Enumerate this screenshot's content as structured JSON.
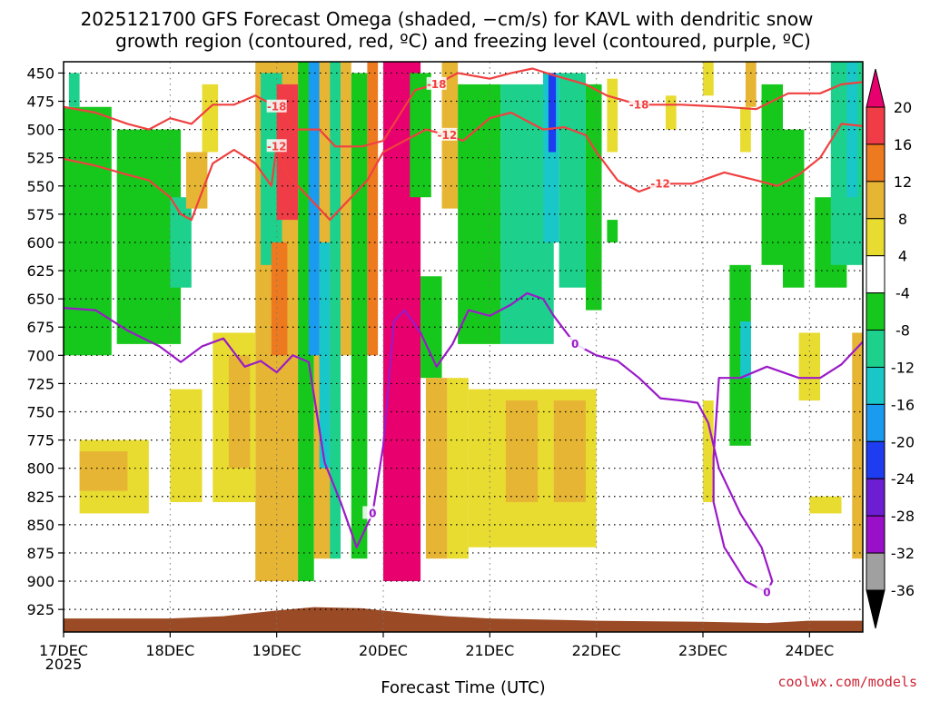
{
  "chart_data": {
    "type": "heatmap",
    "title_lines": [
      "2025121700 GFS Forecast Omega (shaded, −cm/s) for KAVL with dendritic snow",
      "growth region (contoured, red, ºC) and freezing level (contoured, purple, ºC)"
    ],
    "xlabel": "Forecast Time (UTC)",
    "ylabel": "",
    "x_ticks": [
      "17DEC",
      "18DEC",
      "19DEC",
      "20DEC",
      "21DEC",
      "22DEC",
      "23DEC",
      "24DEC"
    ],
    "x_year_label": "2025",
    "x_range_days": [
      0,
      7.5
    ],
    "y_ticks": [
      450,
      475,
      500,
      525,
      550,
      575,
      600,
      625,
      650,
      675,
      700,
      725,
      750,
      775,
      800,
      825,
      850,
      875,
      900,
      925
    ],
    "y_range_hpa": [
      440,
      945
    ],
    "colorbar": {
      "labels": [
        20,
        16,
        12,
        8,
        4,
        -4,
        -8,
        -12,
        -16,
        -20,
        -24,
        -28,
        -32,
        -36
      ],
      "colors": [
        "#e8006f",
        "#f03c46",
        "#ee7a20",
        "#e6b534",
        "#e8dc30",
        "#ffffff",
        "#17c81c",
        "#1dd08c",
        "#19c7c8",
        "#1a9bf0",
        "#1e3cf0",
        "#6e1ed2",
        "#9a0fc8",
        "#a0a0a0",
        "#000000"
      ]
    },
    "omega_patches": [
      {
        "t": [
          0.0,
          0.45
        ],
        "p": [
          480,
          700
        ],
        "v": -8
      },
      {
        "t": [
          0.5,
          1.1
        ],
        "p": [
          500,
          690
        ],
        "v": -8
      },
      {
        "t": [
          1.0,
          1.2
        ],
        "p": [
          560,
          640
        ],
        "v": -12
      },
      {
        "t": [
          1.15,
          1.35
        ],
        "p": [
          520,
          570
        ],
        "v": 8
      },
      {
        "t": [
          0.05,
          0.15
        ],
        "p": [
          450,
          480
        ],
        "v": -12
      },
      {
        "t": [
          1.3,
          1.45
        ],
        "p": [
          460,
          520
        ],
        "v": 4
      },
      {
        "t": [
          1.8,
          2.2
        ],
        "p": [
          440,
          900
        ],
        "v": 8
      },
      {
        "t": [
          1.85,
          2.05
        ],
        "p": [
          450,
          620
        ],
        "v": -12
      },
      {
        "t": [
          1.95,
          2.1
        ],
        "p": [
          600,
          700
        ],
        "v": 12
      },
      {
        "t": [
          2.0,
          2.2
        ],
        "p": [
          460,
          580
        ],
        "v": 16
      },
      {
        "t": [
          2.2,
          2.35
        ],
        "p": [
          440,
          900
        ],
        "v": -8
      },
      {
        "t": [
          2.35,
          2.55
        ],
        "p": [
          440,
          880
        ],
        "v": 8
      },
      {
        "t": [
          2.3,
          2.4
        ],
        "p": [
          440,
          700
        ],
        "v": -20
      },
      {
        "t": [
          2.4,
          2.5
        ],
        "p": [
          600,
          800
        ],
        "v": -16
      },
      {
        "t": [
          2.5,
          2.6
        ],
        "p": [
          440,
          880
        ],
        "v": -12
      },
      {
        "t": [
          2.6,
          2.7
        ],
        "p": [
          440,
          700
        ],
        "v": 8
      },
      {
        "t": [
          2.7,
          2.85
        ],
        "p": [
          450,
          880
        ],
        "v": -8
      },
      {
        "t": [
          2.85,
          2.95
        ],
        "p": [
          440,
          700
        ],
        "v": 12
      },
      {
        "t": [
          3.0,
          3.35
        ],
        "p": [
          440,
          900
        ],
        "v": 20
      },
      {
        "t": [
          1.0,
          1.3
        ],
        "p": [
          730,
          830
        ],
        "v": 4
      },
      {
        "t": [
          0.15,
          0.8
        ],
        "p": [
          775,
          840
        ],
        "v": 4
      },
      {
        "t": [
          0.15,
          0.6
        ],
        "p": [
          785,
          820
        ],
        "v": 8
      },
      {
        "t": [
          1.4,
          1.8
        ],
        "p": [
          680,
          830
        ],
        "v": 4
      },
      {
        "t": [
          1.55,
          1.75
        ],
        "p": [
          700,
          800
        ],
        "v": 8
      },
      {
        "t": [
          3.35,
          3.55
        ],
        "p": [
          630,
          720
        ],
        "v": -8
      },
      {
        "t": [
          3.4,
          3.6
        ],
        "p": [
          720,
          880
        ],
        "v": 8
      },
      {
        "t": [
          3.6,
          3.8
        ],
        "p": [
          720,
          880
        ],
        "v": 4
      },
      {
        "t": [
          3.25,
          3.45
        ],
        "p": [
          450,
          560
        ],
        "v": -8
      },
      {
        "t": [
          3.55,
          3.7
        ],
        "p": [
          440,
          570
        ],
        "v": 8
      },
      {
        "t": [
          3.7,
          4.1
        ],
        "p": [
          460,
          690
        ],
        "v": -8
      },
      {
        "t": [
          4.1,
          4.6
        ],
        "p": [
          460,
          690
        ],
        "v": -12
      },
      {
        "t": [
          4.5,
          4.65
        ],
        "p": [
          450,
          600
        ],
        "v": -16
      },
      {
        "t": [
          4.55,
          4.62
        ],
        "p": [
          450,
          520
        ],
        "v": -24
      },
      {
        "t": [
          4.65,
          4.9
        ],
        "p": [
          450,
          640
        ],
        "v": -12
      },
      {
        "t": [
          4.9,
          5.05
        ],
        "p": [
          460,
          660
        ],
        "v": -8
      },
      {
        "t": [
          3.8,
          5.0
        ],
        "p": [
          730,
          870
        ],
        "v": 4
      },
      {
        "t": [
          4.15,
          4.45
        ],
        "p": [
          740,
          830
        ],
        "v": 8
      },
      {
        "t": [
          4.6,
          4.9
        ],
        "p": [
          740,
          830
        ],
        "v": 8
      },
      {
        "t": [
          5.1,
          5.2
        ],
        "p": [
          580,
          600
        ],
        "v": -8
      },
      {
        "t": [
          5.1,
          5.2
        ],
        "p": [
          455,
          520
        ],
        "v": 4
      },
      {
        "t": [
          5.65,
          5.75
        ],
        "p": [
          470,
          500
        ],
        "v": 4
      },
      {
        "t": [
          6.0,
          6.1
        ],
        "p": [
          440,
          470
        ],
        "v": 4
      },
      {
        "t": [
          6.0,
          6.1
        ],
        "p": [
          740,
          830
        ],
        "v": 4
      },
      {
        "t": [
          6.25,
          6.45
        ],
        "p": [
          620,
          780
        ],
        "v": -8
      },
      {
        "t": [
          6.35,
          6.45
        ],
        "p": [
          670,
          720
        ],
        "v": -16
      },
      {
        "t": [
          6.4,
          6.5
        ],
        "p": [
          440,
          480
        ],
        "v": 8
      },
      {
        "t": [
          6.35,
          6.45
        ],
        "p": [
          480,
          520
        ],
        "v": 4
      },
      {
        "t": [
          6.55,
          6.75
        ],
        "p": [
          460,
          620
        ],
        "v": -8
      },
      {
        "t": [
          6.75,
          6.95
        ],
        "p": [
          500,
          640
        ],
        "v": -8
      },
      {
        "t": [
          6.9,
          7.1
        ],
        "p": [
          680,
          740
        ],
        "v": 4
      },
      {
        "t": [
          7.05,
          7.35
        ],
        "p": [
          560,
          640
        ],
        "v": -8
      },
      {
        "t": [
          7.2,
          7.5
        ],
        "p": [
          440,
          620
        ],
        "v": -12
      },
      {
        "t": [
          7.35,
          7.45
        ],
        "p": [
          440,
          560
        ],
        "v": -16
      },
      {
        "t": [
          7.4,
          7.5
        ],
        "p": [
          680,
          880
        ],
        "v": 8
      },
      {
        "t": [
          7.0,
          7.3
        ],
        "p": [
          825,
          840
        ],
        "v": 4
      }
    ],
    "contours": [
      {
        "level": -18,
        "color": "#f04040",
        "points": [
          [
            0,
            480
          ],
          [
            0.3,
            485
          ],
          [
            0.6,
            495
          ],
          [
            0.8,
            500
          ],
          [
            1.0,
            490
          ],
          [
            1.2,
            495
          ],
          [
            1.4,
            478
          ],
          [
            1.6,
            478
          ],
          [
            1.8,
            470
          ],
          [
            2.0,
            480
          ],
          [
            2.2,
            500
          ],
          [
            2.4,
            500
          ],
          [
            2.55,
            515
          ],
          [
            2.8,
            515
          ],
          [
            3.0,
            510
          ],
          [
            3.2,
            480
          ],
          [
            3.3,
            465
          ],
          [
            3.5,
            460
          ],
          [
            3.7,
            450
          ],
          [
            4.0,
            455
          ],
          [
            4.2,
            450
          ],
          [
            4.4,
            446
          ],
          [
            4.6,
            452
          ],
          [
            4.9,
            460
          ],
          [
            5.1,
            470
          ],
          [
            5.4,
            478
          ],
          [
            5.8,
            478
          ],
          [
            6.2,
            480
          ],
          [
            6.5,
            482
          ],
          [
            6.8,
            468
          ],
          [
            7.1,
            468
          ],
          [
            7.3,
            460
          ],
          [
            7.5,
            458
          ]
        ]
      },
      {
        "level": -12,
        "color": "#f04040",
        "points": [
          [
            0,
            526
          ],
          [
            0.3,
            532
          ],
          [
            0.6,
            540
          ],
          [
            0.8,
            545
          ],
          [
            1.0,
            560
          ],
          [
            1.1,
            575
          ],
          [
            1.2,
            580
          ],
          [
            1.4,
            530
          ],
          [
            1.6,
            518
          ],
          [
            1.8,
            530
          ],
          [
            1.95,
            550
          ],
          [
            2.0,
            515
          ],
          [
            2.1,
            540
          ],
          [
            2.3,
            560
          ],
          [
            2.5,
            580
          ],
          [
            2.7,
            560
          ],
          [
            2.85,
            545
          ],
          [
            3.0,
            520
          ],
          [
            3.2,
            510
          ],
          [
            3.4,
            500
          ],
          [
            3.6,
            505
          ],
          [
            3.75,
            510
          ],
          [
            4.0,
            490
          ],
          [
            4.2,
            485
          ],
          [
            4.5,
            500
          ],
          [
            4.7,
            498
          ],
          [
            4.9,
            505
          ],
          [
            5.0,
            520
          ],
          [
            5.2,
            545
          ],
          [
            5.4,
            555
          ],
          [
            5.6,
            548
          ],
          [
            5.9,
            548
          ],
          [
            6.2,
            538
          ],
          [
            6.5,
            545
          ],
          [
            6.7,
            550
          ],
          [
            6.9,
            540
          ],
          [
            7.1,
            525
          ],
          [
            7.3,
            495
          ],
          [
            7.5,
            497
          ]
        ]
      },
      {
        "level": 0,
        "color": "#9a1ac8",
        "points": [
          [
            0,
            658
          ],
          [
            0.3,
            660
          ],
          [
            0.6,
            678
          ],
          [
            0.9,
            692
          ],
          [
            1.1,
            706
          ],
          [
            1.3,
            692
          ],
          [
            1.5,
            685
          ],
          [
            1.7,
            710
          ],
          [
            1.85,
            705
          ],
          [
            2.0,
            715
          ],
          [
            2.15,
            700
          ],
          [
            2.3,
            706
          ],
          [
            2.45,
            795
          ],
          [
            2.6,
            830
          ],
          [
            2.75,
            870
          ],
          [
            2.9,
            840
          ],
          [
            3.0,
            780
          ],
          [
            3.1,
            670
          ],
          [
            3.2,
            660
          ],
          [
            3.35,
            680
          ],
          [
            3.5,
            710
          ],
          [
            3.65,
            690
          ],
          [
            3.8,
            660
          ],
          [
            4.0,
            665
          ],
          [
            4.2,
            655
          ],
          [
            4.35,
            645
          ],
          [
            4.5,
            650
          ],
          [
            4.6,
            665
          ],
          [
            4.8,
            690
          ],
          [
            5.0,
            700
          ],
          [
            5.2,
            705
          ],
          [
            5.4,
            720
          ],
          [
            5.6,
            738
          ],
          [
            5.8,
            740
          ],
          [
            5.95,
            742
          ],
          [
            6.05,
            760
          ],
          [
            6.15,
            800
          ],
          [
            6.35,
            840
          ],
          [
            6.55,
            870
          ],
          [
            6.65,
            900
          ],
          [
            6.6,
            910
          ],
          [
            6.4,
            900
          ],
          [
            6.2,
            870
          ],
          [
            6.1,
            830
          ],
          [
            6.1,
            790
          ],
          [
            6.15,
            720
          ],
          [
            6.35,
            720
          ],
          [
            6.6,
            710
          ],
          [
            6.9,
            720
          ],
          [
            7.1,
            720
          ],
          [
            7.3,
            708
          ],
          [
            7.5,
            688
          ]
        ]
      }
    ]
  },
  "credit": "coolwx.com/models"
}
